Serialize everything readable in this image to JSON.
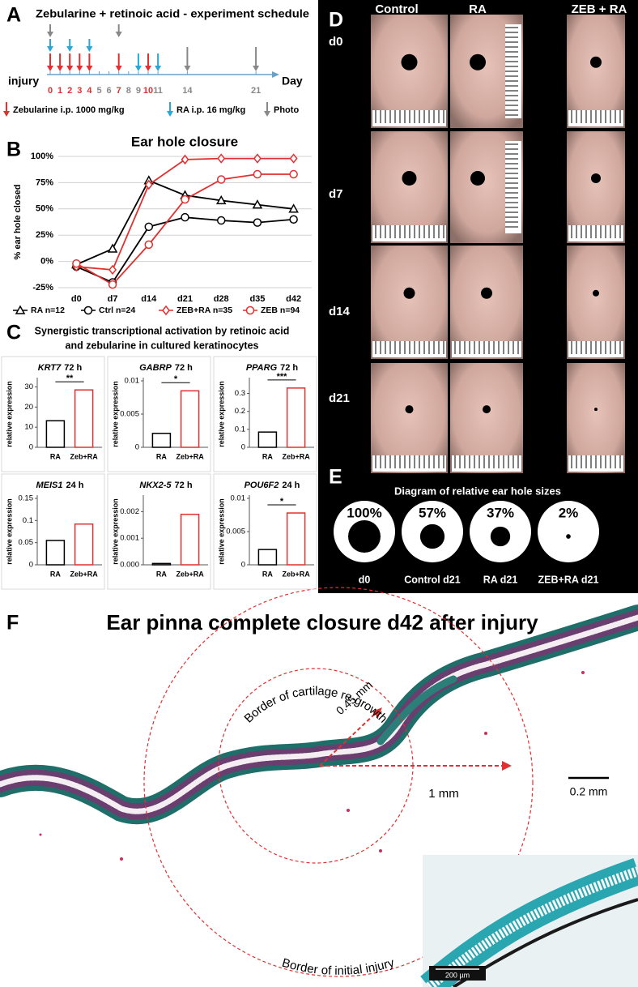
{
  "panels": {
    "a": {
      "letter": "A",
      "title": "Zebularine + retinoic acid - experiment schedule",
      "start_label": "injury",
      "axis_label": "Day",
      "days": [
        {
          "day": 0,
          "zebularine": true,
          "ra": true,
          "photo": true
        },
        {
          "day": 1,
          "zebularine": true,
          "ra": false,
          "photo": false
        },
        {
          "day": 2,
          "zebularine": true,
          "ra": true,
          "photo": false
        },
        {
          "day": 3,
          "zebularine": true,
          "ra": false,
          "photo": false
        },
        {
          "day": 4,
          "zebularine": true,
          "ra": true,
          "photo": false
        },
        {
          "day": 5,
          "zebularine": false,
          "ra": false,
          "photo": false
        },
        {
          "day": 6,
          "zebularine": false,
          "ra": false,
          "photo": false
        },
        {
          "day": 7,
          "zebularine": true,
          "ra": false,
          "photo": true
        },
        {
          "day": 8,
          "zebularine": false,
          "ra": false,
          "photo": false
        },
        {
          "day": 9,
          "zebularine": false,
          "ra": true,
          "photo": false
        },
        {
          "day": 10,
          "zebularine": true,
          "ra": false,
          "photo": false
        },
        {
          "day": 11,
          "zebularine": false,
          "ra": true,
          "photo": false
        },
        {
          "day": 14,
          "zebularine": false,
          "ra": false,
          "photo": true
        },
        {
          "day": 21,
          "zebularine": false,
          "ra": false,
          "photo": true
        }
      ],
      "legend": [
        "Zebularine i.p. 1000 mg/kg",
        "RA i.p. 16 mg/kg",
        "Photo"
      ]
    },
    "b": {
      "letter": "B"
    },
    "c": {
      "letter": "C",
      "title_lines": [
        "Synergistic transcriptional activation by retinoic acid",
        "and zebularine in cultured keratinocytes"
      ]
    },
    "d": {
      "letter": "D",
      "columns": [
        "Control",
        "RA",
        "ZEB + RA"
      ],
      "rows": [
        "d0",
        "d7",
        "d14",
        "d21"
      ]
    },
    "e": {
      "letter": "E",
      "title": "Diagram of relative ear hole sizes",
      "items": [
        {
          "name": "d0",
          "value": 100,
          "label": "100%"
        },
        {
          "name": "Control d21",
          "value": 57,
          "label": "57%"
        },
        {
          "name": "RA d21",
          "value": 37,
          "label": "37%"
        },
        {
          "name": "ZEB+RA d21",
          "value": 2,
          "label": "2%"
        }
      ]
    },
    "f": {
      "letter": "F",
      "title": "Ear pinna complete closure d42 after injury",
      "inner_border": "Border of cartilage re-growth",
      "outer_border": "Border of initial injury",
      "radius_inner": "0.45 mm",
      "radius_outer": "1 mm",
      "scale_bar": "0.2 mm",
      "inset_scale_bar": "200 µm"
    }
  },
  "chart_data": [
    {
      "type": "line",
      "title": "Ear hole closure",
      "y_label": "% ear hole closed",
      "categories": [
        "d0",
        "d7",
        "d14",
        "d21",
        "d28",
        "d35",
        "d42"
      ],
      "series": [
        {
          "name": "RA n=12",
          "color": "#000000",
          "marker": "triangle",
          "values": [
            -3,
            12,
            77,
            63,
            58,
            54,
            50
          ]
        },
        {
          "name": "Ctrl n=24",
          "color": "#000000",
          "marker": "circle",
          "values": [
            -5,
            -20,
            33,
            42,
            39,
            37,
            40
          ]
        },
        {
          "name": "ZEB+RA n=35",
          "color": "#e03030",
          "marker": "diamond",
          "values": [
            -5,
            -8,
            73,
            97,
            98,
            98,
            98
          ]
        },
        {
          "name": "ZEB n=94",
          "color": "#e03030",
          "marker": "circle",
          "values": [
            -2,
            -22,
            16,
            59,
            78,
            83,
            83
          ]
        }
      ],
      "ylim": [
        -25,
        100
      ],
      "yticks": [
        {
          "value": -25,
          "label": "-25%"
        },
        {
          "value": 0,
          "label": "0%"
        },
        {
          "value": 25,
          "label": "25%"
        },
        {
          "value": 50,
          "label": "50%"
        },
        {
          "value": 75,
          "label": "75%"
        },
        {
          "value": 100,
          "label": "100%"
        }
      ],
      "grid": true
    },
    {
      "type": "bar",
      "title": "KRT7",
      "subtitle": "72 h",
      "y_label": "relative expression",
      "categories": [
        "RA",
        "Zeb+RA"
      ],
      "colors": [
        "#000000",
        "#e03030"
      ],
      "values": [
        13.2,
        28.5
      ],
      "ylim": [
        0,
        33
      ],
      "yticks": [
        0,
        10,
        20,
        30
      ],
      "annotation": "**"
    },
    {
      "type": "bar",
      "title": "GABRP",
      "subtitle": "72 h",
      "y_label": "relative expression",
      "categories": [
        "RA",
        "Zeb+RA"
      ],
      "colors": [
        "#000000",
        "#e03030"
      ],
      "values": [
        0.0021,
        0.0085
      ],
      "ylim": [
        0,
        0.01
      ],
      "yticks": [
        0,
        0.005,
        0.01
      ],
      "annotation": "*"
    },
    {
      "type": "bar",
      "title": "PPARG",
      "subtitle": "72 h",
      "y_label": "relative expression",
      "categories": [
        "RA",
        "Zeb+RA"
      ],
      "colors": [
        "#000000",
        "#e03030"
      ],
      "values": [
        0.085,
        0.33
      ],
      "ylim": [
        0,
        0.37
      ],
      "yticks": [
        0,
        0.1,
        0.2,
        0.3
      ],
      "annotation": "***"
    },
    {
      "type": "bar",
      "title": "MEIS1",
      "subtitle": "24 h",
      "y_label": "relative expression",
      "categories": [
        "RA",
        "Zeb+RA"
      ],
      "colors": [
        "#000000",
        "#e03030"
      ],
      "values": [
        0.055,
        0.092
      ],
      "ylim": [
        0,
        0.15
      ],
      "yticks": [
        0,
        0.05,
        0.1,
        0.15
      ]
    },
    {
      "type": "bar",
      "title": "NKX2-5",
      "subtitle": "72 h",
      "y_label": "relative expression",
      "categories": [
        "RA",
        "Zeb+RA"
      ],
      "colors": [
        "#000000",
        "#e03030"
      ],
      "values": [
        5e-05,
        0.0019
      ],
      "ylim": [
        0,
        0.0025
      ],
      "yticks": [
        {
          "value": 0,
          "label": "0.000"
        },
        {
          "value": 0.001,
          "label": "0.001"
        },
        {
          "value": 0.002,
          "label": "0.002"
        }
      ]
    },
    {
      "type": "bar",
      "title": "POU6F2",
      "subtitle": "24 h",
      "y_label": "relative expression",
      "categories": [
        "RA",
        "Zeb+RA"
      ],
      "colors": [
        "#000000",
        "#e03030"
      ],
      "values": [
        0.0023,
        0.0078
      ],
      "ylim": [
        0,
        0.01
      ],
      "yticks": [
        0,
        0.005,
        0.01
      ],
      "annotation": "*"
    }
  ]
}
